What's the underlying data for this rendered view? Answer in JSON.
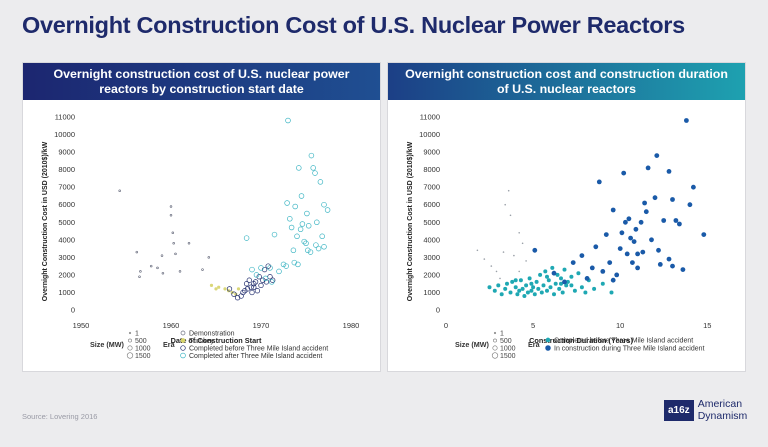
{
  "title": "Overnight Construction Cost of U.S. Nuclear Power Reactors",
  "source": "Source:   Lovering 2016",
  "brand": {
    "mark": "a16z",
    "line1": "American",
    "line2": "Dynamism"
  },
  "colors": {
    "demonstration": "#6b6f80",
    "turnkey": "#d6d36a",
    "before_tmi": "#1e2a6b",
    "after_tmi": "#3fb6c4",
    "completed_before_tmi_dur": "#1fa8b3",
    "in_construction_tmi_dur": "#1a5aa8"
  },
  "chart_data": [
    {
      "type": "scatter",
      "title": "Overnight construction cost of U.S. nuclear power reactors by construction start date",
      "xlabel": "Date of Construction Start",
      "ylabel": "Overnight Construction Cost in USD (2010$)/kW",
      "xlim": [
        1950,
        1980
      ],
      "ylim": [
        0,
        11000
      ],
      "xticks": [
        "1950",
        "1960",
        "1970",
        "1980"
      ],
      "yticks": [
        "0",
        "1000",
        "2000",
        "3000",
        "4000",
        "5000",
        "6000",
        "7000",
        "8000",
        "9000",
        "10000",
        "11000"
      ],
      "grid": false,
      "legend": {
        "size_title": "Size (MW)",
        "sizes": [
          {
            "label": "1",
            "r": 0.8
          },
          {
            "label": "500",
            "r": 1.6
          },
          {
            "label": "1000",
            "r": 2.2
          },
          {
            "label": "1500",
            "r": 2.8
          }
        ],
        "era_title": "Era",
        "eras": [
          {
            "key": "demo",
            "label": "Demonstration"
          },
          {
            "key": "turnkey",
            "label": "Turnkey"
          },
          {
            "key": "before",
            "label": "Completed before Three Mile Island accident"
          },
          {
            "key": "after",
            "label": "Completed after Three Mile Island accident"
          }
        ]
      },
      "series": [
        {
          "key": "demo",
          "points": [
            [
              1954.3,
              6800
            ],
            [
              1956.2,
              3300
            ],
            [
              1956.5,
              1900
            ],
            [
              1956.6,
              2200
            ],
            [
              1957.8,
              2500
            ],
            [
              1958.5,
              2400
            ],
            [
              1959,
              3100
            ],
            [
              1959.1,
              2100
            ],
            [
              1960,
              5900
            ],
            [
              1960,
              5400
            ],
            [
              1960.2,
              4400
            ],
            [
              1960.3,
              3800
            ],
            [
              1960.5,
              3200
            ],
            [
              1961,
              2200
            ],
            [
              1962,
              3800
            ],
            [
              1963.5,
              2300
            ],
            [
              1964.2,
              3000
            ]
          ]
        },
        {
          "key": "turnkey",
          "points": [
            [
              1964.5,
              1400
            ],
            [
              1965,
              1200
            ],
            [
              1965.3,
              1300
            ],
            [
              1966,
              1200
            ],
            [
              1966.4,
              1100
            ],
            [
              1966.8,
              1000
            ],
            [
              1967.2,
              900
            ],
            [
              1967.5,
              1200
            ]
          ]
        },
        {
          "key": "before",
          "points": [
            [
              1966.5,
              1200
            ],
            [
              1967,
              900
            ],
            [
              1967.4,
              700
            ],
            [
              1967.8,
              800
            ],
            [
              1968,
              1000
            ],
            [
              1968.2,
              1100
            ],
            [
              1968.5,
              1200
            ],
            [
              1968.7,
              1700
            ],
            [
              1968.9,
              1300
            ],
            [
              1969,
              1000
            ],
            [
              1969.2,
              1500
            ],
            [
              1969.4,
              1600
            ],
            [
              1969.6,
              1100
            ],
            [
              1969.8,
              1900
            ],
            [
              1970,
              1400
            ],
            [
              1970.2,
              1700
            ],
            [
              1970.4,
              2300
            ],
            [
              1970.6,
              1600
            ],
            [
              1970.8,
              2500
            ],
            [
              1971,
              1900
            ],
            [
              1971.3,
              1700
            ],
            [
              1969.2,
              1300
            ],
            [
              1968.4,
              1500
            ]
          ]
        },
        {
          "key": "after",
          "points": [
            [
              1968.4,
              4100
            ],
            [
              1969,
              2300
            ],
            [
              1969.5,
              2000
            ],
            [
              1970,
              2400
            ],
            [
              1970.5,
              1800
            ],
            [
              1971,
              2400
            ],
            [
              1971.2,
              1600
            ],
            [
              1971.5,
              4300
            ],
            [
              1972,
              2200
            ],
            [
              1972.5,
              2600
            ],
            [
              1972.9,
              6100
            ],
            [
              1972.8,
              2500
            ],
            [
              1973,
              10800
            ],
            [
              1973.2,
              5200
            ],
            [
              1973.4,
              4700
            ],
            [
              1973.6,
              3400
            ],
            [
              1973.7,
              2700
            ],
            [
              1973.8,
              5900
            ],
            [
              1974,
              4200
            ],
            [
              1974.1,
              2600
            ],
            [
              1974.2,
              8100
            ],
            [
              1974.4,
              4600
            ],
            [
              1974.5,
              6500
            ],
            [
              1974.6,
              4900
            ],
            [
              1974.8,
              3900
            ],
            [
              1975,
              3800
            ],
            [
              1975.1,
              5500
            ],
            [
              1975.2,
              3400
            ],
            [
              1975.3,
              4800
            ],
            [
              1975.5,
              3300
            ],
            [
              1975.6,
              8800
            ],
            [
              1975.8,
              8100
            ],
            [
              1976,
              7800
            ],
            [
              1976.1,
              3700
            ],
            [
              1976.2,
              5000
            ],
            [
              1976.4,
              3500
            ],
            [
              1976.6,
              7300
            ],
            [
              1976.8,
              4200
            ],
            [
              1977,
              6000
            ],
            [
              1977.4,
              5700
            ],
            [
              1977,
              3600
            ]
          ]
        }
      ]
    },
    {
      "type": "scatter",
      "title": "Overnight construction cost and construction duration of U.S. nuclear reactors",
      "xlabel": "Construction Duration (Years)",
      "ylabel": "Overnight Construction Cost in USD (2010$)/kW",
      "xlim": [
        0,
        15.5
      ],
      "ylim": [
        0,
        11000
      ],
      "xticks": [
        "0",
        "5",
        "10",
        "15"
      ],
      "yticks": [
        "0",
        "1000",
        "2000",
        "3000",
        "4000",
        "5000",
        "6000",
        "7000",
        "8000",
        "9000",
        "10000",
        "11000"
      ],
      "grid": false,
      "legend": {
        "size_title": "Size (MW)",
        "sizes": [
          {
            "label": "1",
            "r": 0.8
          },
          {
            "label": "500",
            "r": 1.6
          },
          {
            "label": "1000",
            "r": 2.2
          },
          {
            "label": "1500",
            "r": 2.8
          }
        ],
        "era_title": "Era",
        "eras": [
          {
            "key": "completed",
            "label": "Completed before Three Mile Island accident"
          },
          {
            "key": "inconstr",
            "label": "In construction during Three Mile Island accident"
          }
        ]
      },
      "series": [
        {
          "key": "small",
          "points": [
            [
              1.8,
              3400
            ],
            [
              2.2,
              2900
            ],
            [
              2.6,
              2500
            ],
            [
              2.9,
              2200
            ],
            [
              3.1,
              1800
            ],
            [
              3.4,
              6000
            ],
            [
              3.6,
              6800
            ],
            [
              3.7,
              5400
            ],
            [
              3.9,
              3100
            ],
            [
              4.2,
              4400
            ],
            [
              4.4,
              3800
            ],
            [
              4.6,
              2800
            ],
            [
              4.2,
              2200
            ],
            [
              3.3,
              3300
            ]
          ]
        },
        {
          "key": "completed",
          "points": [
            [
              2.5,
              1300
            ],
            [
              2.8,
              1100
            ],
            [
              3,
              1400
            ],
            [
              3.2,
              900
            ],
            [
              3.4,
              1200
            ],
            [
              3.5,
              1500
            ],
            [
              3.7,
              1000
            ],
            [
              3.8,
              1600
            ],
            [
              4,
              1300
            ],
            [
              4.1,
              900
            ],
            [
              4.2,
              1100
            ],
            [
              4.3,
              1700
            ],
            [
              4.4,
              1200
            ],
            [
              4.5,
              800
            ],
            [
              4.6,
              1400
            ],
            [
              4.7,
              1000
            ],
            [
              4.8,
              1800
            ],
            [
              4.9,
              1100
            ],
            [
              5,
              1300
            ],
            [
              5.1,
              900
            ],
            [
              5.2,
              1600
            ],
            [
              5.3,
              1200
            ],
            [
              5.4,
              2000
            ],
            [
              5.5,
              1000
            ],
            [
              5.6,
              1400
            ],
            [
              5.7,
              2200
            ],
            [
              5.8,
              1100
            ],
            [
              5.9,
              1700
            ],
            [
              6,
              1300
            ],
            [
              6.1,
              2400
            ],
            [
              6.2,
              900
            ],
            [
              6.3,
              1500
            ],
            [
              6.4,
              2000
            ],
            [
              6.5,
              1200
            ],
            [
              6.6,
              1800
            ],
            [
              6.7,
              1000
            ],
            [
              6.8,
              2300
            ],
            [
              6.9,
              1400
            ],
            [
              7,
              1600
            ],
            [
              7.2,
              1900
            ],
            [
              7.4,
              1100
            ],
            [
              7.6,
              2100
            ],
            [
              7.8,
              1300
            ],
            [
              8,
              1000
            ],
            [
              8.2,
              1700
            ],
            [
              8.5,
              1200
            ],
            [
              9,
              1500
            ],
            [
              9.5,
              1000
            ],
            [
              4.9,
              1500
            ],
            [
              5.8,
              1900
            ],
            [
              6.6,
              1500
            ],
            [
              4,
              1700
            ],
            [
              7.2,
              1400
            ]
          ]
        },
        {
          "key": "inconstr",
          "points": [
            [
              5.1,
              3400
            ],
            [
              6.2,
              2100
            ],
            [
              6.8,
              1600
            ],
            [
              7.3,
              2700
            ],
            [
              7.8,
              3100
            ],
            [
              8.1,
              1800
            ],
            [
              8.4,
              2400
            ],
            [
              8.6,
              3600
            ],
            [
              8.8,
              7300
            ],
            [
              9,
              2200
            ],
            [
              9.2,
              4300
            ],
            [
              9.4,
              2700
            ],
            [
              9.6,
              5700
            ],
            [
              9.8,
              2000
            ],
            [
              10,
              3500
            ],
            [
              10.1,
              4400
            ],
            [
              10.2,
              7800
            ],
            [
              10.3,
              5000
            ],
            [
              10.4,
              3200
            ],
            [
              10.5,
              5200
            ],
            [
              10.6,
              4100
            ],
            [
              10.7,
              2700
            ],
            [
              10.8,
              3900
            ],
            [
              10.9,
              4600
            ],
            [
              11,
              2400
            ],
            [
              11.2,
              5000
            ],
            [
              11.3,
              3300
            ],
            [
              11.4,
              6100
            ],
            [
              11.5,
              5600
            ],
            [
              11.6,
              8100
            ],
            [
              11.8,
              4000
            ],
            [
              12,
              6400
            ],
            [
              12.1,
              8800
            ],
            [
              12.2,
              3400
            ],
            [
              12.3,
              2600
            ],
            [
              12.5,
              5100
            ],
            [
              12.8,
              7900
            ],
            [
              13,
              6300
            ],
            [
              13.2,
              5100
            ],
            [
              13.4,
              4900
            ],
            [
              13.6,
              2300
            ],
            [
              13.8,
              10800
            ],
            [
              14,
              6000
            ],
            [
              14.2,
              7000
            ],
            [
              14.8,
              4300
            ],
            [
              12.8,
              2900
            ],
            [
              13,
              2500
            ],
            [
              9.6,
              1700
            ],
            [
              11,
              3200
            ]
          ]
        }
      ]
    }
  ]
}
